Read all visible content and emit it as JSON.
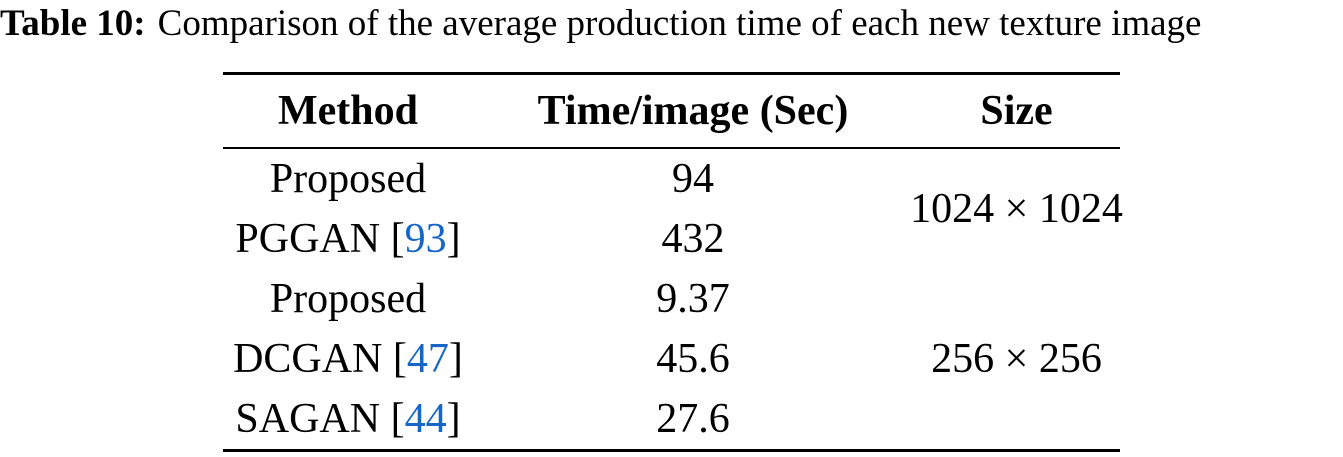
{
  "title": {
    "label": "Table 10:",
    "text": "Comparison of the average production time of each new texture image"
  },
  "colors": {
    "text": "#000000",
    "rule": "#000000",
    "link_blue": "#1666c8"
  },
  "table": {
    "headers": [
      "Method",
      "Time/image (Sec)",
      "Size"
    ],
    "rows": [
      {
        "method_prefix": "Proposed",
        "cite": "",
        "method_suffix": "",
        "time": "94"
      },
      {
        "method_prefix": "PGGAN [",
        "cite": "93",
        "method_suffix": "]",
        "time": "432"
      },
      {
        "method_prefix": "Proposed",
        "cite": "",
        "method_suffix": "",
        "time": "9.37"
      },
      {
        "method_prefix": "DCGAN [",
        "cite": "47",
        "method_suffix": "]",
        "time": "45.6"
      },
      {
        "method_prefix": "SAGAN [",
        "cite": "44",
        "method_suffix": "]",
        "time": "27.6"
      }
    ],
    "size_groups": [
      {
        "label": "1024 × 1024",
        "row_span": "rows 1-2"
      },
      {
        "label": "256 × 256",
        "row_span": "rows 3-5"
      }
    ]
  },
  "chart_data": {
    "type": "table",
    "title": "Table 10: Comparison of the average production time of each new texture image",
    "columns": [
      "Method",
      "Time/image (Sec)",
      "Size"
    ],
    "cells": [
      [
        "Proposed",
        "94",
        "1024 × 1024"
      ],
      [
        "PGGAN [93]",
        "432",
        "1024 × 1024"
      ],
      [
        "Proposed",
        "9.37",
        "256 × 256"
      ],
      [
        "DCGAN [47]",
        "45.6",
        "256 × 256"
      ],
      [
        "SAGAN [44]",
        "27.6",
        "256 × 256"
      ]
    ]
  }
}
